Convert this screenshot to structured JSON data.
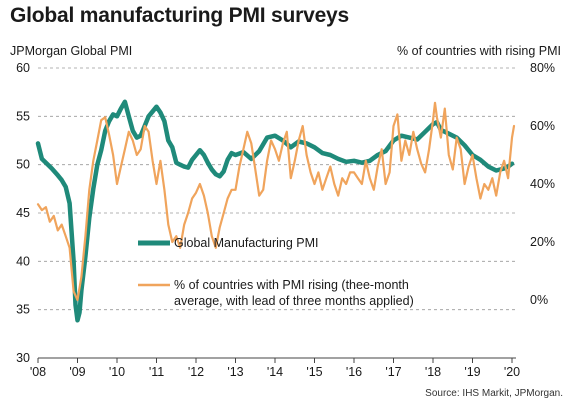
{
  "title": "Global manufacturing PMI surveys",
  "left_axis_label": "JPMorgan Global PMI",
  "right_axis_label": "% of countries with rising PMI",
  "source": "Source: IHS Markit, JPMorgan.",
  "colors": {
    "pmi": "#1f8a7a",
    "rising": "#f0a45c",
    "grid": "#9a9a9a"
  },
  "chart_data": {
    "type": "line",
    "title": "Global manufacturing PMI surveys",
    "x_ticks": [
      "'08",
      "'09",
      "'10",
      "'11",
      "'12",
      "'13",
      "'14",
      "'15",
      "'16",
      "'17",
      "'18",
      "'19",
      "'20"
    ],
    "y_left": {
      "label": "JPMorgan Global PMI",
      "lim": [
        30,
        60
      ],
      "ticks": [
        "30",
        "35",
        "40",
        "45",
        "50",
        "55",
        "60"
      ]
    },
    "y_right": {
      "label": "% of countries with rising PMI",
      "lim": [
        -20,
        80
      ],
      "ticks": [
        "0%",
        "20%",
        "40%",
        "60%",
        "80%"
      ]
    },
    "grid": true,
    "legend_placement": "center",
    "series": [
      {
        "name": "Global Manufacturing PMI",
        "axis": "left",
        "x": [
          2008.0,
          2008.1,
          2008.2,
          2008.35,
          2008.5,
          2008.6,
          2008.7,
          2008.8,
          2008.85,
          2008.9,
          2008.95,
          2009.0,
          2009.05,
          2009.1,
          2009.2,
          2009.3,
          2009.4,
          2009.5,
          2009.6,
          2009.7,
          2009.8,
          2009.9,
          2010.0,
          2010.1,
          2010.2,
          2010.3,
          2010.4,
          2010.5,
          2010.6,
          2010.7,
          2010.8,
          2010.9,
          2011.0,
          2011.1,
          2011.2,
          2011.3,
          2011.4,
          2011.5,
          2011.6,
          2011.7,
          2011.8,
          2011.9,
          2012.0,
          2012.1,
          2012.2,
          2012.3,
          2012.4,
          2012.5,
          2012.6,
          2012.7,
          2012.8,
          2012.9,
          2013.0,
          2013.2,
          2013.4,
          2013.6,
          2013.8,
          2014.0,
          2014.2,
          2014.4,
          2014.6,
          2014.8,
          2015.0,
          2015.2,
          2015.4,
          2015.6,
          2015.8,
          2016.0,
          2016.2,
          2016.4,
          2016.6,
          2016.8,
          2017.0,
          2017.2,
          2017.4,
          2017.6,
          2017.8,
          2018.0,
          2018.1,
          2018.2,
          2018.4,
          2018.6,
          2018.8,
          2019.0,
          2019.2,
          2019.4,
          2019.6,
          2019.8,
          2019.9,
          2020.0
        ],
        "values": [
          52.2,
          50.6,
          50.2,
          49.6,
          48.9,
          48.4,
          47.7,
          46.0,
          43.0,
          40.0,
          35.5,
          33.9,
          34.7,
          37.0,
          40.5,
          44.5,
          47.5,
          50.0,
          51.5,
          53.5,
          54.5,
          55.2,
          55.0,
          55.8,
          56.5,
          55.0,
          53.5,
          52.8,
          53.0,
          54.0,
          55.0,
          55.5,
          56.0,
          55.4,
          54.5,
          52.5,
          51.8,
          50.2,
          50.0,
          49.8,
          49.7,
          50.5,
          51.0,
          51.5,
          51.0,
          50.2,
          49.5,
          49.0,
          48.8,
          49.3,
          50.5,
          51.2,
          51.0,
          51.3,
          50.6,
          51.4,
          52.8,
          53.0,
          52.5,
          51.8,
          52.4,
          52.2,
          51.8,
          51.2,
          51.0,
          50.6,
          50.3,
          50.4,
          50.2,
          50.4,
          51.0,
          51.4,
          52.5,
          53.0,
          52.8,
          52.6,
          53.4,
          54.2,
          54.4,
          53.6,
          53.2,
          52.8,
          52.0,
          51.0,
          50.5,
          49.8,
          49.4,
          49.6,
          49.8,
          50.1
        ]
      },
      {
        "name": "% of countries with PMI rising (thee-month average, with lead of three months applied)",
        "axis": "right",
        "x": [
          2008.0,
          2008.1,
          2008.2,
          2008.3,
          2008.4,
          2008.5,
          2008.6,
          2008.7,
          2008.8,
          2008.9,
          2009.0,
          2009.1,
          2009.2,
          2009.3,
          2009.4,
          2009.5,
          2009.6,
          2009.7,
          2009.8,
          2009.9,
          2010.0,
          2010.1,
          2010.2,
          2010.3,
          2010.4,
          2010.5,
          2010.6,
          2010.7,
          2010.8,
          2010.9,
          2011.0,
          2011.1,
          2011.2,
          2011.3,
          2011.4,
          2011.5,
          2011.6,
          2011.7,
          2011.8,
          2011.9,
          2012.0,
          2012.1,
          2012.2,
          2012.3,
          2012.4,
          2012.5,
          2012.6,
          2012.7,
          2012.8,
          2012.9,
          2013.0,
          2013.1,
          2013.2,
          2013.3,
          2013.4,
          2013.5,
          2013.6,
          2013.7,
          2013.8,
          2013.9,
          2014.0,
          2014.1,
          2014.2,
          2014.3,
          2014.4,
          2014.5,
          2014.6,
          2014.7,
          2014.8,
          2014.9,
          2015.0,
          2015.1,
          2015.2,
          2015.3,
          2015.4,
          2015.5,
          2015.6,
          2015.7,
          2015.8,
          2015.9,
          2016.0,
          2016.1,
          2016.2,
          2016.3,
          2016.4,
          2016.5,
          2016.6,
          2016.7,
          2016.8,
          2016.9,
          2017.0,
          2017.1,
          2017.2,
          2017.3,
          2017.4,
          2017.5,
          2017.6,
          2017.7,
          2017.8,
          2017.9,
          2018.0,
          2018.05,
          2018.1,
          2018.2,
          2018.3,
          2018.4,
          2018.5,
          2018.6,
          2018.7,
          2018.8,
          2018.9,
          2019.0,
          2019.1,
          2019.2,
          2019.3,
          2019.4,
          2019.5,
          2019.6,
          2019.7,
          2019.8,
          2019.9,
          2020.0,
          2020.05
        ],
        "values": [
          33,
          31,
          32,
          27,
          29,
          24,
          26,
          22,
          18,
          3,
          0,
          8,
          22,
          38,
          48,
          55,
          62,
          63,
          57,
          50,
          40,
          46,
          52,
          58,
          55,
          50,
          52,
          60,
          58,
          48,
          40,
          48,
          38,
          26,
          20,
          22,
          18,
          26,
          30,
          35,
          37,
          40,
          36,
          30,
          22,
          18,
          25,
          30,
          35,
          38,
          38,
          46,
          52,
          58,
          54,
          45,
          36,
          38,
          48,
          55,
          52,
          48,
          54,
          58,
          42,
          48,
          55,
          60,
          50,
          44,
          40,
          44,
          38,
          42,
          46,
          40,
          36,
          42,
          40,
          44,
          44,
          42,
          40,
          48,
          42,
          38,
          46,
          52,
          40,
          44,
          60,
          64,
          48,
          55,
          50,
          58,
          52,
          47,
          44,
          52,
          62,
          68,
          63,
          56,
          66,
          50,
          45,
          56,
          52,
          40,
          46,
          50,
          42,
          35,
          40,
          38,
          42,
          36,
          44,
          48,
          42,
          56,
          60
        ]
      }
    ]
  }
}
